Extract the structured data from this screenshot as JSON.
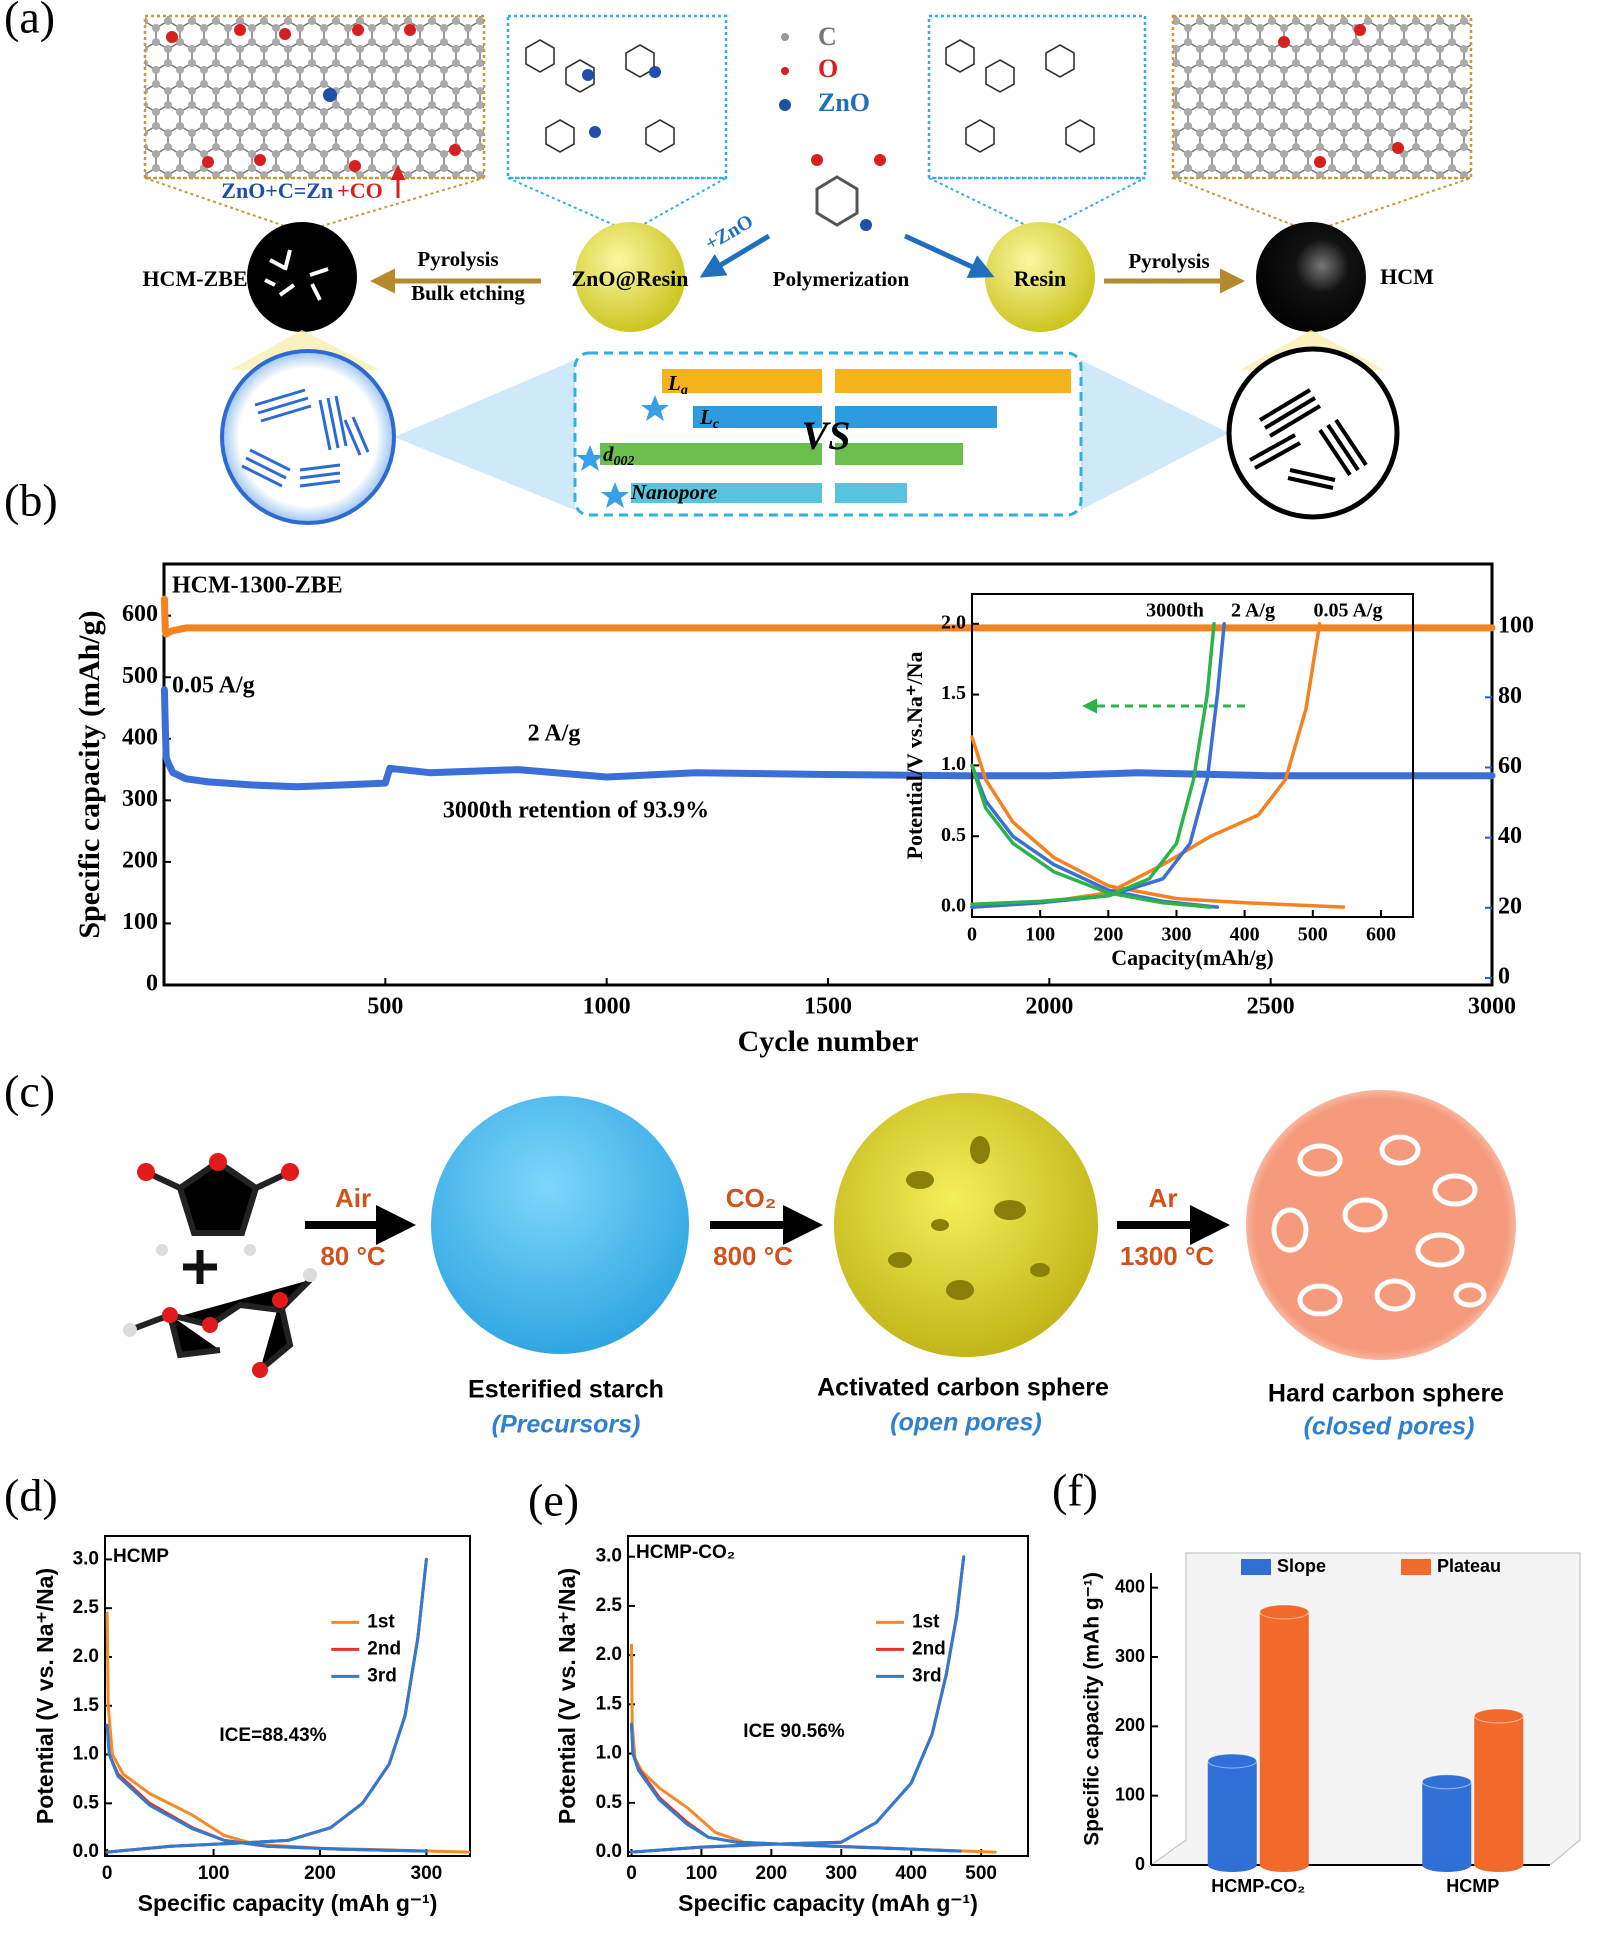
{
  "panel_labels": [
    "(a)",
    "(b)",
    "(c)",
    "(d)",
    "(e)",
    "(f)"
  ],
  "scheme_a": {
    "atom_legend": [
      "C",
      "O",
      "ZnO"
    ],
    "reaction": [
      "ZnO+C=Zn",
      "+CO"
    ],
    "spheres": [
      "HCM-ZBE",
      "ZnO@Resin",
      "Resin",
      "HCM"
    ],
    "steps": [
      "Pyrolysis",
      "Bulk etching",
      "+ZnO",
      "Polymerization",
      "Pyrolysis"
    ],
    "parameters": [
      {
        "main": "L",
        "sub": "a"
      },
      {
        "main": "L",
        "sub": "c"
      },
      {
        "main": "d",
        "sub": "002"
      },
      {
        "main": "Nanopore",
        "sub": ""
      }
    ],
    "vs": "VS"
  },
  "scheme_c": {
    "conditions": [
      {
        "gas": "Air",
        "temp": "80 °C"
      },
      {
        "gas": "CO₂",
        "temp": "800 °C"
      },
      {
        "gas": "Ar",
        "temp": "1300 °C"
      }
    ],
    "products": [
      {
        "name": "Esterified starch",
        "note": "(Precursors)"
      },
      {
        "name": "Activated carbon sphere",
        "note": "(open pores)"
      },
      {
        "name": "Hard carbon sphere",
        "note": "(closed pores)"
      }
    ]
  },
  "chart_data": [
    {
      "type": "line",
      "x_label": "Cycle number",
      "y_label": "Specific capacity (mAh/g)",
      "annotations": [
        "HCM-1300-ZBE",
        "0.05 A/g",
        "2 A/g",
        "3000th retention of 93.9%"
      ],
      "x": [
        1,
        3,
        5,
        10,
        20,
        50,
        100,
        200,
        300,
        400,
        500,
        510,
        600,
        800,
        1000,
        1200,
        1500,
        1800,
        2000,
        2200,
        2500,
        2800,
        3000
      ],
      "series": [
        {
          "color": "#3a6fd8",
          "values": [
            480,
            420,
            370,
            360,
            345,
            335,
            330,
            325,
            322,
            325,
            328,
            352,
            345,
            350,
            338,
            345,
            342,
            340,
            340,
            345,
            340,
            340,
            340
          ]
        },
        {
          "color": "#f58220",
          "axis": "y2",
          "values": [
            108,
            99,
            98,
            98.5,
            99,
            99.8,
            99.8,
            99.8,
            99.8,
            99.8,
            99.8,
            99.8,
            99.8,
            99.8,
            99.8,
            99.8,
            99.8,
            99.8,
            99.8,
            99.8,
            99.8,
            99.8,
            99.8
          ]
        }
      ],
      "xlim": [
        0,
        3000
      ],
      "xticks": [
        500,
        1000,
        1500,
        2000,
        2500,
        3000
      ],
      "ylim": [
        0,
        684
      ],
      "yticks": [
        0,
        100,
        200,
        300,
        400,
        500,
        600
      ],
      "y2lim": [
        -2,
        118
      ],
      "y2ticks": [
        0,
        20,
        40,
        60,
        80,
        100
      ]
    },
    {
      "type": "line",
      "x_label": "Capacity(mAh/g)",
      "y_label": "Potential/V vs.Na⁺/Na",
      "annotations": [
        "3000th",
        "2 A/g",
        "0.05 A/g"
      ],
      "series": [
        {
          "color": "#f58220",
          "x": [
            0,
            20,
            60,
            120,
            200,
            300,
            400,
            500,
            545,
            null,
            0,
            100,
            200,
            280,
            350,
            420,
            460,
            490,
            510
          ],
          "values": [
            1.2,
            0.9,
            0.6,
            0.35,
            0.15,
            0.06,
            0.03,
            0.01,
            0,
            null,
            0,
            0.03,
            0.1,
            0.3,
            0.5,
            0.65,
            0.9,
            1.4,
            2.0
          ]
        },
        {
          "color": "#3a6fd8",
          "x": [
            0,
            20,
            60,
            120,
            200,
            280,
            360,
            null,
            0,
            100,
            200,
            280,
            320,
            345,
            360,
            370
          ],
          "values": [
            1.0,
            0.75,
            0.5,
            0.3,
            0.12,
            0.04,
            0,
            null,
            0,
            0.03,
            0.08,
            0.2,
            0.45,
            0.9,
            1.5,
            2.0
          ]
        },
        {
          "color": "#2db34a",
          "x": [
            0,
            20,
            60,
            120,
            200,
            280,
            350,
            null,
            0,
            100,
            200,
            260,
            300,
            325,
            345,
            355
          ],
          "values": [
            1.0,
            0.7,
            0.45,
            0.25,
            0.1,
            0.03,
            0,
            null,
            0.02,
            0.04,
            0.08,
            0.2,
            0.45,
            0.9,
            1.5,
            2.0
          ]
        }
      ],
      "xlim": [
        0,
        647
      ],
      "xticks": [
        0,
        100,
        200,
        300,
        400,
        500,
        600
      ],
      "ylim": [
        -0.07,
        2.21
      ],
      "yticks": [
        {
          "value": 0,
          "label": "0.0"
        },
        0.5,
        {
          "value": 1,
          "label": "1.0"
        },
        1.5,
        {
          "value": 2,
          "label": "2.0"
        }
      ]
    },
    {
      "type": "line",
      "x_label": "Specific capacity (mAh g⁻¹)",
      "y_label": "Potential (V vs. Na⁺/Na)",
      "annotations": [
        "HCMP",
        "ICE=88.43%"
      ],
      "legend": "right",
      "series": [
        {
          "name": "1st",
          "color": "#f58a2a",
          "x": [
            0,
            1,
            5,
            15,
            40,
            80,
            110,
            140,
            200,
            270,
            340,
            null,
            0,
            60,
            120,
            170,
            210,
            240,
            265,
            280,
            292,
            300
          ],
          "values": [
            2.45,
            1.5,
            1.0,
            0.8,
            0.6,
            0.38,
            0.17,
            0.08,
            0.04,
            0.02,
            0,
            null,
            0,
            0.06,
            0.09,
            0.12,
            0.25,
            0.5,
            0.9,
            1.4,
            2.2,
            3.0
          ]
        },
        {
          "name": "2nd",
          "color": "#e8302a",
          "x": [
            0,
            2,
            10,
            40,
            80,
            110,
            150,
            220,
            300,
            null,
            0,
            60,
            120,
            170,
            210,
            240,
            265,
            280,
            292,
            300
          ],
          "values": [
            1.3,
            1.0,
            0.8,
            0.5,
            0.25,
            0.12,
            0.06,
            0.03,
            0.01,
            null,
            0,
            0.06,
            0.09,
            0.12,
            0.25,
            0.5,
            0.9,
            1.4,
            2.2,
            3.0
          ]
        },
        {
          "name": "3rd",
          "color": "#2f7bd1",
          "x": [
            0,
            2,
            10,
            40,
            80,
            110,
            150,
            220,
            300,
            null,
            0,
            60,
            120,
            170,
            210,
            240,
            265,
            280,
            292,
            300
          ],
          "values": [
            1.3,
            1.0,
            0.78,
            0.48,
            0.24,
            0.12,
            0.06,
            0.03,
            0.01,
            null,
            0,
            0.06,
            0.09,
            0.12,
            0.25,
            0.5,
            0.9,
            1.4,
            2.2,
            3.0
          ]
        }
      ],
      "xlim": [
        -2,
        341
      ],
      "xticks": [
        0,
        100,
        200,
        300
      ],
      "ylim": [
        -0.04,
        3.24
      ],
      "yticks": [
        {
          "value": 0,
          "label": "0.0"
        },
        0.5,
        {
          "value": 1,
          "label": "1.0"
        },
        1.5,
        {
          "value": 2,
          "label": "2.0"
        },
        2.5,
        {
          "value": 3,
          "label": "3.0"
        }
      ]
    },
    {
      "type": "line",
      "x_label": "Specific capacity (mAh g⁻¹)",
      "y_label": "Potential (V vs. Na⁺/Na)",
      "annotations": [
        "HCMP-CO₂",
        "ICE 90.56%"
      ],
      "legend": "right",
      "series": [
        {
          "name": "1st",
          "color": "#f58a2a",
          "x": [
            0,
            1,
            5,
            15,
            40,
            80,
            120,
            160,
            250,
            400,
            520,
            null,
            0,
            100,
            200,
            300,
            350,
            400,
            430,
            450,
            465,
            475
          ],
          "values": [
            2.1,
            1.3,
            0.95,
            0.82,
            0.65,
            0.45,
            0.2,
            0.1,
            0.07,
            0.03,
            0,
            null,
            0,
            0.05,
            0.08,
            0.1,
            0.3,
            0.7,
            1.2,
            1.8,
            2.4,
            3.0
          ]
        },
        {
          "name": "2nd",
          "color": "#e8302a",
          "x": [
            0,
            2,
            10,
            40,
            80,
            110,
            150,
            250,
            400,
            470,
            null,
            0,
            100,
            200,
            300,
            350,
            400,
            430,
            450,
            465,
            475
          ],
          "values": [
            1.3,
            1.0,
            0.85,
            0.55,
            0.3,
            0.15,
            0.1,
            0.07,
            0.03,
            0.01,
            null,
            0,
            0.05,
            0.08,
            0.1,
            0.3,
            0.7,
            1.2,
            1.8,
            2.4,
            3.0
          ]
        },
        {
          "name": "3rd",
          "color": "#2f7bd1",
          "x": [
            0,
            2,
            10,
            40,
            80,
            110,
            150,
            250,
            400,
            470,
            null,
            0,
            100,
            200,
            300,
            350,
            400,
            430,
            450,
            465,
            475
          ],
          "values": [
            1.3,
            1.0,
            0.83,
            0.53,
            0.28,
            0.15,
            0.1,
            0.07,
            0.03,
            0.01,
            null,
            0,
            0.05,
            0.08,
            0.1,
            0.3,
            0.7,
            1.2,
            1.8,
            2.4,
            3.0
          ]
        }
      ],
      "xlim": [
        -5,
        567
      ],
      "xticks": [
        0,
        100,
        200,
        300,
        400,
        500
      ],
      "ylim": [
        -0.04,
        3.21
      ],
      "yticks": [
        {
          "value": 0,
          "label": "0.0"
        },
        0.5,
        {
          "value": 1,
          "label": "1.0"
        },
        1.5,
        {
          "value": 2,
          "label": "2.0"
        },
        2.5,
        {
          "value": 3,
          "label": "3.0"
        }
      ]
    },
    {
      "type": "bar",
      "y_label": "Specific capacity (mAh g⁻¹)",
      "legend": "top",
      "categories": [
        "HCMP-CO₂",
        "HCMP"
      ],
      "series": [
        {
          "name": "Slope",
          "color": "#2f6fd6",
          "values": [
            150,
            120
          ]
        },
        {
          "name": "Plateau",
          "color": "#f2692c",
          "values": [
            365,
            215
          ]
        }
      ],
      "ylim": [
        0,
        450
      ],
      "yticks": [
        0,
        100,
        200,
        300,
        400
      ]
    }
  ]
}
